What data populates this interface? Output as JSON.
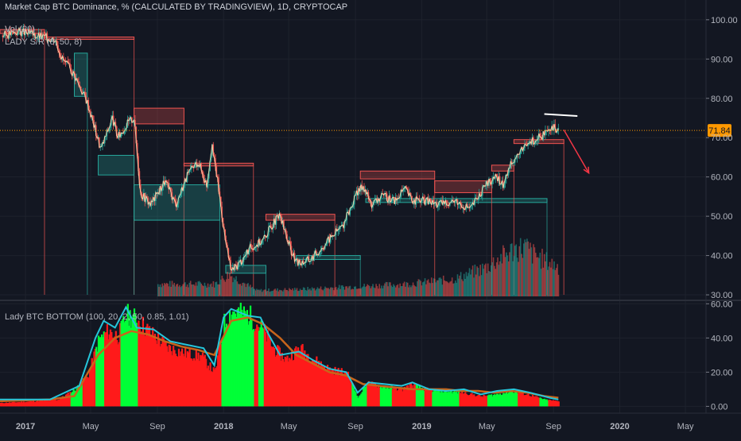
{
  "chart_data": [
    {
      "type": "candlestick",
      "title": "Market Cap BTC Dominance, % (CALCULATED BY TRADINGVIEW), 1D, CRYPTOCAP",
      "indicators": [
        "Vol (20)",
        "LADY S/R (8, 50, 8)"
      ],
      "ylim": [
        29,
        103
      ],
      "yticks": [
        30,
        40,
        50,
        60,
        70,
        80,
        90,
        100
      ],
      "ytick_labels": [
        "30.00",
        "40.00",
        "50.00",
        "60.00",
        "70.00",
        "80.00",
        "90.00",
        "100.00"
      ],
      "last_value_label": "71.84",
      "last_value": 71.84,
      "x_range": [
        "2016-11-15",
        "2020-06-08"
      ],
      "price_path": [
        [
          "2016-11-20",
          96
        ],
        [
          "2016-12-20",
          97
        ],
        [
          "2017-01-20",
          96
        ],
        [
          "2017-02-25",
          95
        ],
        [
          "2017-03-10",
          90
        ],
        [
          "2017-04-01",
          86
        ],
        [
          "2017-04-25",
          79
        ],
        [
          "2017-05-20",
          67
        ],
        [
          "2017-06-10",
          75
        ],
        [
          "2017-06-20",
          70
        ],
        [
          "2017-07-10",
          74
        ],
        [
          "2017-07-20",
          75
        ],
        [
          "2017-08-01",
          56
        ],
        [
          "2017-08-20",
          53
        ],
        [
          "2017-09-15",
          59
        ],
        [
          "2017-10-05",
          53
        ],
        [
          "2017-10-25",
          60
        ],
        [
          "2017-11-15",
          64
        ],
        [
          "2017-12-01",
          58
        ],
        [
          "2017-12-10",
          68
        ],
        [
          "2017-12-20",
          60
        ],
        [
          "2018-01-05",
          43
        ],
        [
          "2018-01-15",
          36
        ],
        [
          "2018-02-05",
          39
        ],
        [
          "2018-02-20",
          42
        ],
        [
          "2018-03-15",
          44
        ],
        [
          "2018-04-01",
          48
        ],
        [
          "2018-04-15",
          50
        ],
        [
          "2018-05-01",
          43
        ],
        [
          "2018-05-15",
          38
        ],
        [
          "2018-06-10",
          39
        ],
        [
          "2018-07-01",
          42
        ],
        [
          "2018-07-20",
          45
        ],
        [
          "2018-08-10",
          48
        ],
        [
          "2018-09-01",
          55
        ],
        [
          "2018-09-15",
          58
        ],
        [
          "2018-09-30",
          53
        ],
        [
          "2018-10-20",
          55
        ],
        [
          "2018-11-15",
          54
        ],
        [
          "2018-12-01",
          57
        ],
        [
          "2018-12-15",
          54
        ],
        [
          "2019-01-10",
          54
        ],
        [
          "2019-02-01",
          53
        ],
        [
          "2019-03-01",
          54
        ],
        [
          "2019-04-01",
          52
        ],
        [
          "2019-04-15",
          55
        ],
        [
          "2019-05-01",
          58
        ],
        [
          "2019-05-15",
          60
        ],
        [
          "2019-06-01",
          58
        ],
        [
          "2019-06-15",
          64
        ],
        [
          "2019-07-01",
          66
        ],
        [
          "2019-07-20",
          69
        ],
        [
          "2019-08-05",
          70
        ],
        [
          "2019-08-20",
          71
        ],
        [
          "2019-09-01",
          72.5
        ],
        [
          "2019-09-10",
          71.84
        ]
      ],
      "sr_zones": [
        {
          "kind": "resistance",
          "x0": "2016-11-15",
          "x1": "2017-02-05",
          "y_top": 97.5,
          "y_bot": 96.5
        },
        {
          "kind": "resistance",
          "x0": "2017-02-05",
          "x1": "2017-07-20",
          "y_top": 95.6,
          "y_bot": 95.0
        },
        {
          "kind": "support",
          "x0": "2017-04-01",
          "x1": "2017-04-25",
          "y_top": 91.5,
          "y_bot": 80.5
        },
        {
          "kind": "support",
          "x0": "2017-05-15",
          "x1": "2017-07-20",
          "y_top": 65.5,
          "y_bot": 60.5
        },
        {
          "kind": "resistance",
          "x0": "2017-07-20",
          "x1": "2017-10-20",
          "y_top": 77.5,
          "y_bot": 73.5
        },
        {
          "kind": "support",
          "x0": "2017-07-20",
          "x1": "2017-12-25",
          "y_top": 58.0,
          "y_bot": 49.0
        },
        {
          "kind": "resistance",
          "x0": "2017-10-20",
          "x1": "2018-02-25",
          "y_top": 63.5,
          "y_bot": 62.8
        },
        {
          "kind": "support",
          "x0": "2018-01-05",
          "x1": "2018-03-20",
          "y_top": 37.5,
          "y_bot": 35.5
        },
        {
          "kind": "resistance",
          "x0": "2018-03-20",
          "x1": "2018-07-25",
          "y_top": 50.5,
          "y_bot": 49.0
        },
        {
          "kind": "support",
          "x0": "2018-05-15",
          "x1": "2018-09-10",
          "y_top": 40.0,
          "y_bot": 39.0
        },
        {
          "kind": "resistance",
          "x0": "2018-09-10",
          "x1": "2019-01-25",
          "y_top": 61.5,
          "y_bot": 59.5
        },
        {
          "kind": "support",
          "x0": "2018-09-20",
          "x1": "2019-08-20",
          "y_top": 54.5,
          "y_bot": 53.5
        },
        {
          "kind": "resistance",
          "x0": "2019-01-25",
          "x1": "2019-05-10",
          "y_top": 59.0,
          "y_bot": 56.0
        },
        {
          "kind": "resistance",
          "x0": "2019-05-10",
          "x1": "2019-06-20",
          "y_top": 63.0,
          "y_bot": 61.5
        },
        {
          "kind": "resistance",
          "x0": "2019-06-20",
          "x1": "2019-09-20",
          "y_top": 69.5,
          "y_bot": 68.5
        }
      ],
      "volume": [
        [
          "2017-12-15",
          0.25
        ],
        [
          "2018-01-10",
          0.45
        ],
        [
          "2018-03-01",
          0.12
        ],
        [
          "2018-06-01",
          0.15
        ],
        [
          "2018-09-01",
          0.2
        ],
        [
          "2018-12-01",
          0.25
        ],
        [
          "2019-03-01",
          0.35
        ],
        [
          "2019-05-01",
          0.6
        ],
        [
          "2019-05-20",
          0.75
        ],
        [
          "2019-06-20",
          0.95
        ],
        [
          "2019-07-10",
          1.0
        ],
        [
          "2019-07-25",
          0.85
        ],
        [
          "2019-08-20",
          0.7
        ],
        [
          "2019-09-10",
          0.6
        ]
      ],
      "annotations": {
        "white_line": {
          "x0": "2019-08-15",
          "x1": "2019-10-15",
          "y0": 76.0,
          "y1": 75.5
        },
        "red_arrow": {
          "x0": "2019-09-20",
          "y0": 72.0,
          "x1": "2019-11-05",
          "y1": 61.0
        }
      },
      "colors": {
        "up": "#26a69a",
        "down": "#ef5350",
        "price": "#ffe0b2",
        "last": "#ff9800",
        "text": "#b2b5be"
      }
    },
    {
      "type": "area",
      "title": "Lady BTC BOTTOM (100, 20, 2, 50, 0.85, 1.01)",
      "ylim": [
        -4,
        62
      ],
      "yticks": [
        0,
        20,
        40,
        60
      ],
      "ytick_labels": [
        "0.00",
        "20.00",
        "40.00",
        "60.00"
      ],
      "hist": [
        [
          "2016-11-15",
          2
        ],
        [
          "2017-01-15",
          3
        ],
        [
          "2017-03-01",
          4
        ],
        [
          "2017-04-01",
          10
        ],
        [
          "2017-04-25",
          18
        ],
        [
          "2017-05-15",
          40
        ],
        [
          "2017-06-01",
          45
        ],
        [
          "2017-06-20",
          42
        ],
        [
          "2017-07-05",
          55
        ],
        [
          "2017-07-25",
          52
        ],
        [
          "2017-08-15",
          45
        ],
        [
          "2017-09-20",
          35
        ],
        [
          "2017-10-20",
          32
        ],
        [
          "2017-11-20",
          30
        ],
        [
          "2017-12-15",
          20
        ],
        [
          "2018-01-01",
          50
        ],
        [
          "2018-01-15",
          57
        ],
        [
          "2018-02-15",
          55
        ],
        [
          "2018-03-15",
          45
        ],
        [
          "2018-04-01",
          35
        ],
        [
          "2018-04-25",
          28
        ],
        [
          "2018-05-20",
          35
        ],
        [
          "2018-06-15",
          28
        ],
        [
          "2018-07-15",
          22
        ],
        [
          "2018-08-15",
          20
        ],
        [
          "2018-09-05",
          5
        ],
        [
          "2018-09-20",
          14
        ],
        [
          "2018-10-20",
          12
        ],
        [
          "2018-11-25",
          10
        ],
        [
          "2018-12-10",
          13
        ],
        [
          "2019-01-10",
          10
        ],
        [
          "2019-02-15",
          9
        ],
        [
          "2019-03-20",
          8
        ],
        [
          "2019-04-20",
          6
        ],
        [
          "2019-05-15",
          7
        ],
        [
          "2019-06-15",
          9
        ],
        [
          "2019-07-15",
          7
        ],
        [
          "2019-08-15",
          4
        ],
        [
          "2019-09-10",
          3
        ]
      ],
      "green_spans": [
        [
          "2017-03-25",
          "2017-04-15"
        ],
        [
          "2017-05-10",
          "2017-05-25"
        ],
        [
          "2017-06-25",
          "2017-07-25"
        ],
        [
          "2017-12-28",
          "2018-02-25"
        ],
        [
          "2018-03-05",
          "2018-03-15"
        ],
        [
          "2018-08-25",
          "2018-09-20"
        ],
        [
          "2018-10-15",
          "2018-11-05"
        ],
        [
          "2018-12-20",
          "2019-01-05"
        ],
        [
          "2019-01-20",
          "2019-03-10"
        ],
        [
          "2019-05-01",
          "2019-06-25"
        ],
        [
          "2019-08-05",
          "2019-08-20"
        ]
      ],
      "cyan_line": [
        [
          "2016-11-15",
          4
        ],
        [
          "2017-02-15",
          4
        ],
        [
          "2017-04-10",
          12
        ],
        [
          "2017-05-10",
          40
        ],
        [
          "2017-05-25",
          50
        ],
        [
          "2017-06-15",
          46
        ],
        [
          "2017-07-05",
          58
        ],
        [
          "2017-07-25",
          46
        ],
        [
          "2017-08-25",
          45
        ],
        [
          "2017-09-25",
          38
        ],
        [
          "2017-10-25",
          36
        ],
        [
          "2017-11-25",
          34
        ],
        [
          "2017-12-15",
          24
        ],
        [
          "2018-01-01",
          52
        ],
        [
          "2018-01-15",
          57
        ],
        [
          "2018-02-15",
          53
        ],
        [
          "2018-03-10",
          52
        ],
        [
          "2018-03-25",
          42
        ],
        [
          "2018-04-15",
          30
        ],
        [
          "2018-05-20",
          32
        ],
        [
          "2018-06-15",
          27
        ],
        [
          "2018-07-15",
          22
        ],
        [
          "2018-08-15",
          20
        ],
        [
          "2018-09-05",
          8
        ],
        [
          "2018-09-25",
          14
        ],
        [
          "2018-10-25",
          13
        ],
        [
          "2018-11-25",
          12
        ],
        [
          "2018-12-15",
          14
        ],
        [
          "2019-01-15",
          10
        ],
        [
          "2019-02-15",
          9
        ],
        [
          "2019-03-20",
          10
        ],
        [
          "2019-04-20",
          7
        ],
        [
          "2019-05-20",
          9
        ],
        [
          "2019-06-20",
          10
        ],
        [
          "2019-07-20",
          8
        ],
        [
          "2019-08-25",
          5
        ],
        [
          "2019-09-10",
          4
        ]
      ],
      "orange_line": [
        [
          "2016-11-15",
          3
        ],
        [
          "2017-02-15",
          4
        ],
        [
          "2017-04-01",
          6
        ],
        [
          "2017-05-15",
          30
        ],
        [
          "2017-06-15",
          40
        ],
        [
          "2017-07-15",
          44
        ],
        [
          "2017-08-15",
          42
        ],
        [
          "2017-09-15",
          38
        ],
        [
          "2017-10-15",
          35
        ],
        [
          "2017-11-15",
          33
        ],
        [
          "2017-12-15",
          30
        ],
        [
          "2018-01-15",
          50
        ],
        [
          "2018-02-15",
          52
        ],
        [
          "2018-03-15",
          48
        ],
        [
          "2018-04-15",
          40
        ],
        [
          "2018-05-15",
          30
        ],
        [
          "2018-06-15",
          25
        ],
        [
          "2018-07-15",
          20
        ],
        [
          "2018-08-15",
          18
        ],
        [
          "2018-09-15",
          13
        ],
        [
          "2018-10-15",
          12
        ],
        [
          "2018-11-15",
          11
        ],
        [
          "2018-12-15",
          10
        ],
        [
          "2019-01-15",
          10
        ],
        [
          "2019-02-15",
          10
        ],
        [
          "2019-03-15",
          9
        ],
        [
          "2019-04-15",
          9
        ],
        [
          "2019-05-15",
          8
        ],
        [
          "2019-06-15",
          9
        ],
        [
          "2019-07-15",
          8
        ],
        [
          "2019-08-15",
          6
        ],
        [
          "2019-09-10",
          5
        ]
      ],
      "colors": {
        "bear": "#ff1a1a",
        "bull": "#00ff37",
        "cyan": "#26c6da",
        "orange": "#c8651b"
      }
    }
  ],
  "time_axis": {
    "ticks": [
      {
        "date": "2017-01-01",
        "label": "2017",
        "bold": true
      },
      {
        "date": "2017-05-01",
        "label": "May"
      },
      {
        "date": "2017-09-01",
        "label": "Sep"
      },
      {
        "date": "2018-01-01",
        "label": "2018",
        "bold": true
      },
      {
        "date": "2018-05-01",
        "label": "May"
      },
      {
        "date": "2018-09-01",
        "label": "Sep"
      },
      {
        "date": "2019-01-01",
        "label": "2019",
        "bold": true
      },
      {
        "date": "2019-05-01",
        "label": "May"
      },
      {
        "date": "2019-09-01",
        "label": "Sep"
      },
      {
        "date": "2020-01-01",
        "label": "2020",
        "bold": true
      },
      {
        "date": "2020-05-01",
        "label": "May"
      }
    ]
  }
}
